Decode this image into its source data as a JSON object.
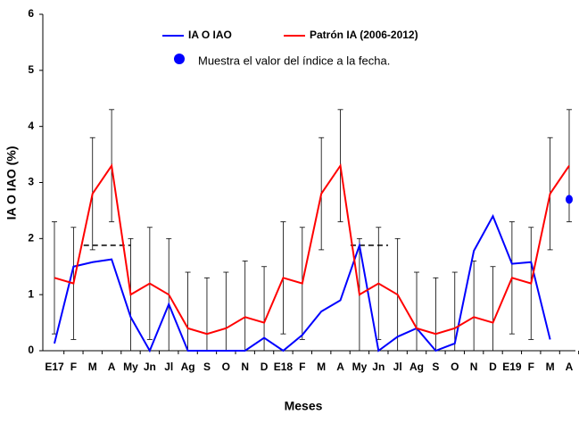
{
  "chart_data": {
    "type": "line",
    "x_label": "Meses",
    "y_label": "IA O IAO (%)",
    "categories": [
      "E17",
      "F",
      "M",
      "A",
      "My",
      "Jn",
      "Jl",
      "Ag",
      "S",
      "O",
      "N",
      "D",
      "E18",
      "F",
      "M",
      "A",
      "My",
      "Jn",
      "Jl",
      "Ag",
      "S",
      "O",
      "N",
      "D",
      "E19",
      "F",
      "M",
      "A"
    ],
    "series": [
      {
        "name": "IA O IAO",
        "color": "#0000ff",
        "values": [
          0.13,
          1.5,
          1.58,
          1.63,
          0.6,
          0,
          0.83,
          0,
          0,
          0,
          0,
          0.23,
          0,
          0.28,
          0.7,
          0.9,
          1.88,
          0,
          0.25,
          0.4,
          0,
          0.13,
          1.78,
          2.4,
          1.55,
          1.58,
          0.2,
          null
        ]
      },
      {
        "name": "Patrón IA (2006-2012)",
        "color": "#ff0000",
        "values": [
          1.3,
          1.2,
          2.8,
          3.3,
          1.0,
          1.2,
          1.0,
          0.4,
          0.3,
          0.4,
          0.6,
          0.5,
          1.3,
          1.2,
          2.8,
          3.3,
          1.0,
          1.2,
          1.0,
          0.4,
          0.3,
          0.4,
          0.6,
          0.5,
          1.3,
          1.2,
          2.8,
          3.3
        ],
        "errors": [
          1,
          1,
          1,
          1,
          1,
          1,
          1,
          1,
          1,
          1,
          1,
          1,
          1,
          1,
          1,
          1,
          1,
          1,
          1,
          1,
          1,
          1,
          1,
          1,
          1,
          1,
          1,
          1
        ]
      }
    ],
    "current_point": {
      "label": "Muestra el valor del índice a la fecha.",
      "color": "#0000ff",
      "index": 27,
      "value": 2.7
    },
    "dashed_lines": [
      {
        "value": 1.88,
        "start": 2,
        "end": 4
      },
      {
        "value": 1.88,
        "start": 16,
        "end": 17.5
      }
    ],
    "ylim": [
      0,
      6
    ],
    "yticks": [
      0,
      1,
      2,
      3,
      4,
      5,
      6
    ]
  }
}
